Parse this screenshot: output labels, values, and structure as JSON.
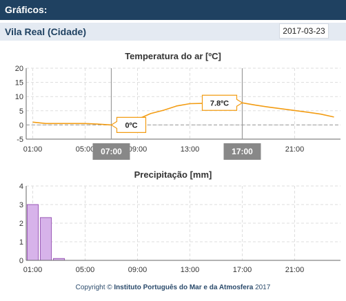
{
  "header": {
    "title": "Gráficos:"
  },
  "location": {
    "name": "Vila Real (Cidade)",
    "date": "2017-03-23"
  },
  "colors": {
    "header_bg": "#1f4161",
    "location_bg": "#e4eaf2",
    "temp_line": "#f39c12",
    "precip_bar": "#d7b3ea",
    "precip_border": "#9a59b5",
    "marker_bg": "#888888"
  },
  "chart_data": [
    {
      "type": "line",
      "title": "Temperatura do ar [ºC]",
      "xlabel": "",
      "ylabel": "",
      "x_ticks": [
        "01:00",
        "05:00",
        "09:00",
        "13:00",
        "17:00",
        "21:00"
      ],
      "xlim": [
        0.5,
        24.5
      ],
      "ylim": [
        -5,
        20
      ],
      "y_ticks": [
        -5,
        0,
        5,
        10,
        15,
        20
      ],
      "grid": true,
      "series": [
        {
          "x": [
            1,
            2,
            3,
            4,
            5,
            6,
            7,
            8,
            9,
            10,
            11,
            12,
            13,
            14,
            15,
            16,
            17,
            18,
            19,
            20,
            21,
            22,
            23,
            24
          ],
          "values": [
            1.0,
            0.5,
            0.5,
            0.5,
            0.5,
            0.3,
            0.0,
            0.5,
            2.0,
            4.0,
            5.2,
            6.7,
            7.5,
            7.6,
            7.6,
            7.5,
            7.8,
            7.0,
            6.3,
            5.7,
            5.1,
            4.5,
            3.8,
            2.8
          ]
        }
      ],
      "annotations": {
        "min": {
          "label": "0ºC",
          "hour_label": "07:00",
          "x": 7,
          "y": 0.0
        },
        "max": {
          "label": "7.8ºC",
          "hour_label": "17:00",
          "x": 17,
          "y": 7.8
        }
      }
    },
    {
      "type": "bar",
      "title": "Precipitação [mm]",
      "xlabel": "",
      "ylabel": "",
      "x_ticks": [
        "01:00",
        "05:00",
        "09:00",
        "13:00",
        "17:00",
        "21:00"
      ],
      "xlim": [
        0.5,
        24.5
      ],
      "ylim": [
        0,
        4
      ],
      "y_ticks": [
        0,
        1,
        2,
        3,
        4
      ],
      "grid": true,
      "series": [
        {
          "x": [
            1,
            2,
            3,
            4,
            5,
            6,
            7,
            8,
            9,
            10,
            11,
            12,
            13,
            14,
            15,
            16,
            17,
            18,
            19,
            20,
            21,
            22,
            23,
            24
          ],
          "values": [
            3.0,
            2.3,
            0.1,
            0,
            0,
            0,
            0,
            0,
            0,
            0,
            0,
            0,
            0,
            0,
            0,
            0,
            0,
            0,
            0,
            0,
            0,
            0,
            0,
            0
          ]
        }
      ]
    }
  ],
  "footer": {
    "prefix": "Copyright ©",
    "org": "Instituto Português do Mar e da Atmosfera",
    "year": "2017"
  }
}
